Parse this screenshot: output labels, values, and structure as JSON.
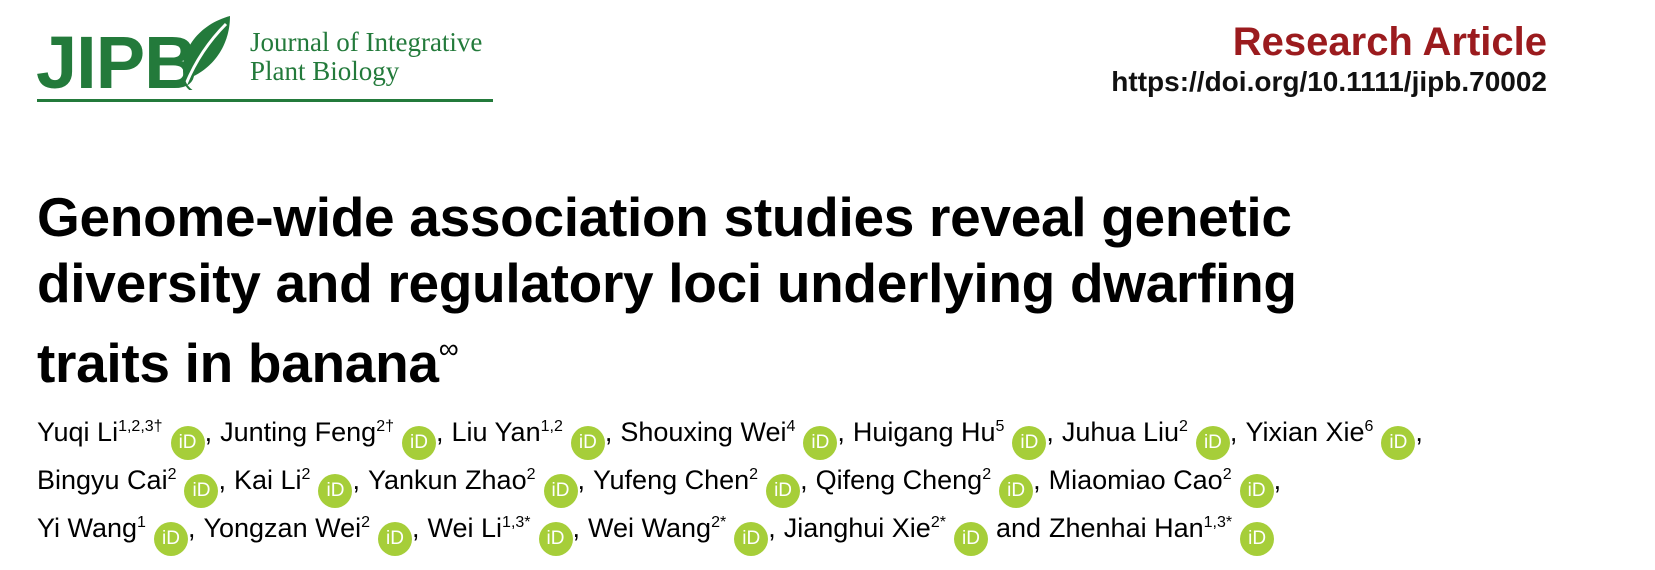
{
  "header": {
    "logo": "JIPB",
    "journal_lines": [
      "Journal of Integrative",
      "Plant Biology"
    ],
    "article_type": "Research Article",
    "doi": "https://doi.org/10.1111/jipb.70002"
  },
  "title": {
    "lines": [
      "Genome-wide association studies reveal genetic",
      "diversity and regulatory loci underlying dwarfing",
      "traits in banana"
    ],
    "mark": "∞"
  },
  "orcid_label": "iD",
  "separator": ",",
  "conjunction": "and",
  "author_lines": [
    [
      {
        "name": "Yuqi Li",
        "sup": "1,2,3†"
      },
      {
        "name": "Junting Feng",
        "sup": "2†"
      },
      {
        "name": "Liu Yan",
        "sup": "1,2"
      },
      {
        "name": "Shouxing Wei",
        "sup": "4"
      },
      {
        "name": "Huigang Hu",
        "sup": "5"
      },
      {
        "name": "Juhua Liu",
        "sup": "2"
      },
      {
        "name": "Yixian Xie",
        "sup": "6"
      }
    ],
    [
      {
        "name": "Bingyu Cai",
        "sup": "2"
      },
      {
        "name": "Kai Li",
        "sup": "2"
      },
      {
        "name": "Yankun Zhao",
        "sup": "2"
      },
      {
        "name": "Yufeng Chen",
        "sup": "2"
      },
      {
        "name": "Qifeng Cheng",
        "sup": "2"
      },
      {
        "name": "Miaomiao Cao",
        "sup": "2"
      }
    ],
    [
      {
        "name": "Yi Wang",
        "sup": "1"
      },
      {
        "name": "Yongzan Wei",
        "sup": "2"
      },
      {
        "name": "Wei Li",
        "sup": "1,3*"
      },
      {
        "name": "Wei Wang",
        "sup": "2*"
      },
      {
        "name": "Jianghui Xie",
        "sup": "2*"
      },
      {
        "name": "Zhenhai Han",
        "sup": "1,3*"
      }
    ]
  ]
}
